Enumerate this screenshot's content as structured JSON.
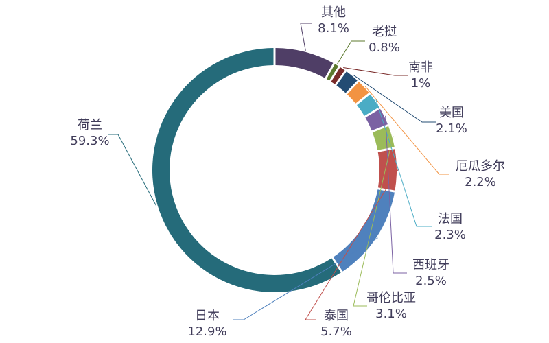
{
  "chart_data": {
    "type": "pie",
    "style": "donut",
    "slices": [
      {
        "name": "其他",
        "value_label": "8.1%",
        "value": 8.1,
        "color": "#4f3e66"
      },
      {
        "name": "老挝",
        "value_label": "0.8%",
        "value": 0.8,
        "color": "#5c7a2e"
      },
      {
        "name": "南非",
        "value_label": "1%",
        "value": 1.0,
        "color": "#7a2b2a"
      },
      {
        "name": "美国",
        "value_label": "2.1%",
        "value": 2.1,
        "color": "#234c73"
      },
      {
        "name": "厄瓜多尔",
        "value_label": "2.2%",
        "value": 2.2,
        "color": "#f29342"
      },
      {
        "name": "法国",
        "value_label": "2.3%",
        "value": 2.3,
        "color": "#4aacc5"
      },
      {
        "name": "西班牙",
        "value_label": "2.5%",
        "value": 2.5,
        "color": "#7b62a3"
      },
      {
        "name": "哥伦比亚",
        "value_label": "3.1%",
        "value": 3.1,
        "color": "#9bbb59"
      },
      {
        "name": "泰国",
        "value_label": "5.7%",
        "value": 5.7,
        "color": "#c0504d"
      },
      {
        "name": "日本",
        "value_label": "12.9%",
        "value": 12.9,
        "color": "#4f81bd"
      },
      {
        "name": "荷兰",
        "value_label": "59.3%",
        "value": 59.3,
        "color": "#256b7a"
      }
    ]
  }
}
